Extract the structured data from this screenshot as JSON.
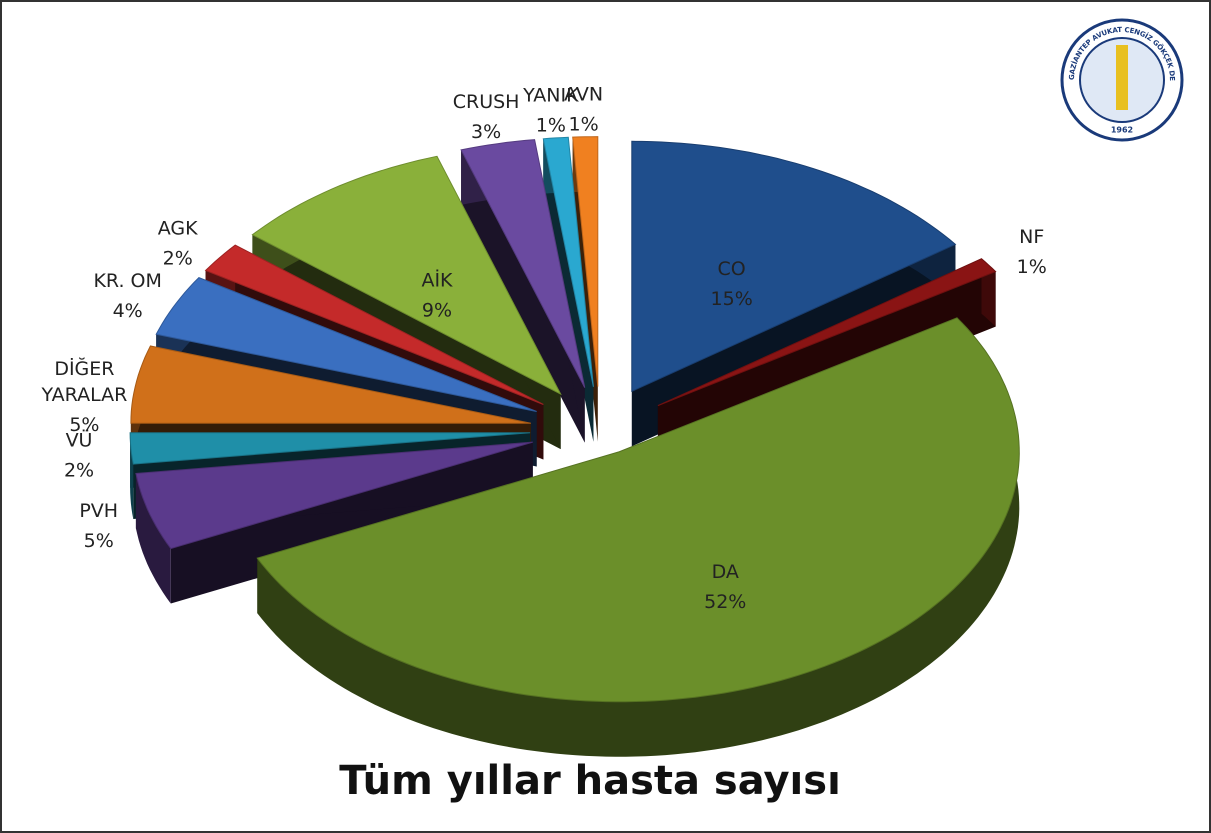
{
  "chart_data": {
    "type": "pie",
    "title": "Tüm yıllar hasta sayısı",
    "categories": [
      "CO",
      "NF",
      "DA",
      "PVH",
      "VÜ",
      "DİĞER YARALAR",
      "KR. OM",
      "AGK",
      "AİK",
      "CRUSH",
      "YANIK",
      "AVN"
    ],
    "values": [
      15,
      1,
      52,
      5,
      2,
      5,
      4,
      2,
      9,
      3,
      1,
      1
    ],
    "value_labels": [
      "15%",
      "1%",
      "52%",
      "5%",
      "2%",
      "5%",
      "4%",
      "2%",
      "9%",
      "3%",
      "1%",
      "1%"
    ],
    "colors": [
      "#1f4e8c",
      "#8a1414",
      "#6b8f2a",
      "#5b3a8c",
      "#1f8fa8",
      "#d0701a",
      "#3a6fc0",
      "#c42a2a",
      "#8ab03a",
      "#6a4aa0",
      "#2aa8d0",
      "#f08020"
    ],
    "logo": {
      "text": "GAZİANTEP AVUKAT CENGİZ GÖKÇEK DEVLET HASTANESİ",
      "year": "1962"
    }
  }
}
